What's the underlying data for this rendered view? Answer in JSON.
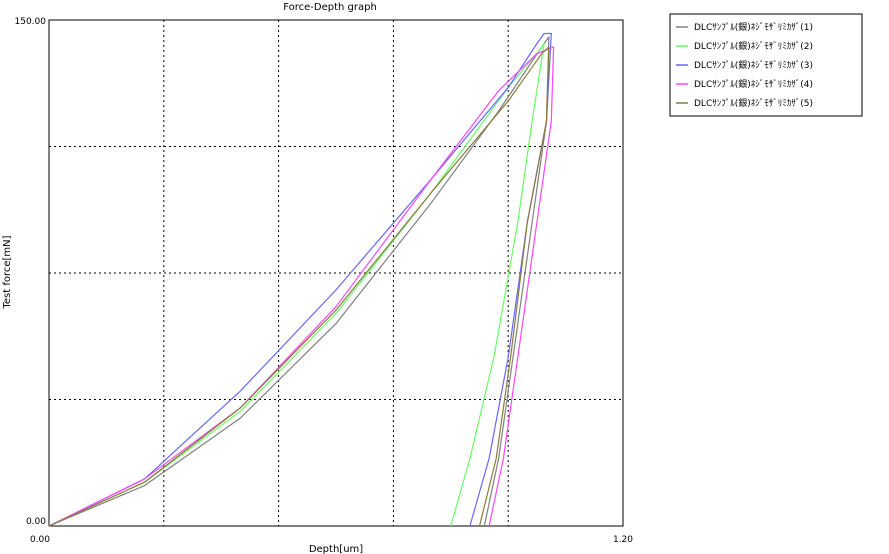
{
  "chart_data": {
    "type": "line",
    "title": "Force-Depth graph",
    "xlabel": "Depth[um]",
    "ylabel": "Test force[mN]",
    "xlim": [
      0.0,
      1.2
    ],
    "ylim": [
      0.0,
      150.0
    ],
    "x_tick_labels": [
      "0.00",
      "1.20"
    ],
    "y_tick_labels": [
      "0.00",
      "150.00"
    ],
    "grid": true,
    "grid_divisions": {
      "x": 5,
      "y": 4
    },
    "legend_position": "top-right, outside plot",
    "series": [
      {
        "name": "DLCｻﾝﾌﾟﾙ(銀)ﾈｼﾞﾓｻﾞﾘﾐｶｻﾞ(1)",
        "color": "#808080",
        "points": [
          [
            0,
            0
          ],
          [
            0.2,
            12.0
          ],
          [
            0.4,
            32.0
          ],
          [
            0.6,
            60.0
          ],
          [
            0.8,
            96.0
          ],
          [
            0.94,
            123.0
          ],
          [
            1.03,
            142.0
          ],
          [
            1.045,
            145.0
          ],
          [
            1.04,
            120.0
          ],
          [
            1.01,
            90.0
          ],
          [
            0.97,
            50.0
          ],
          [
            0.94,
            20.0
          ],
          [
            0.91,
            0
          ]
        ]
      },
      {
        "name": "DLCｻﾝﾌﾟﾙ(銀)ﾈｼﾞﾓｻﾞﾘﾐｶｻﾞ(2)",
        "color": "#66ff66",
        "points": [
          [
            0,
            0
          ],
          [
            0.2,
            13.0
          ],
          [
            0.4,
            34.0
          ],
          [
            0.6,
            63.0
          ],
          [
            0.8,
            99.0
          ],
          [
            0.96,
            130.0
          ],
          [
            1.025,
            141.0
          ],
          [
            1.035,
            143.0
          ],
          [
            1.01,
            120.0
          ],
          [
            0.98,
            90.0
          ],
          [
            0.93,
            50.0
          ],
          [
            0.88,
            20.0
          ],
          [
            0.84,
            0
          ]
        ]
      },
      {
        "name": "DLCｻﾝﾌﾟﾙ(銀)ﾈｼﾞﾓｻﾞﾘﾐｶｻﾞ(3)",
        "color": "#6666ff",
        "points": [
          [
            0,
            0
          ],
          [
            0.2,
            14.0
          ],
          [
            0.4,
            40.0
          ],
          [
            0.6,
            70.0
          ],
          [
            0.8,
            103.0
          ],
          [
            0.96,
            130.0
          ],
          [
            1.02,
            143.0
          ],
          [
            1.035,
            146.0
          ],
          [
            1.05,
            146.0
          ],
          [
            1.04,
            120.0
          ],
          [
            1.0,
            90.0
          ],
          [
            0.96,
            50.0
          ],
          [
            0.92,
            20.0
          ],
          [
            0.88,
            0
          ]
        ]
      },
      {
        "name": "DLCｻﾝﾌﾟﾙ(銀)ﾈｼﾞﾓｻﾞﾘﾐｶｻﾞ(4)",
        "color": "#ff44ff",
        "points": [
          [
            0,
            0
          ],
          [
            0.2,
            14.0
          ],
          [
            0.4,
            35.0
          ],
          [
            0.6,
            65.0
          ],
          [
            0.8,
            103.0
          ],
          [
            0.94,
            129.0
          ],
          [
            1.02,
            140.0
          ],
          [
            1.055,
            142.0
          ],
          [
            1.05,
            120.0
          ],
          [
            1.02,
            90.0
          ],
          [
            0.98,
            50.0
          ],
          [
            0.95,
            20.0
          ],
          [
            0.92,
            0
          ]
        ]
      },
      {
        "name": "DLCｻﾝﾌﾟﾙ(銀)ﾈｼﾞﾓｻﾞﾘﾐｶｻﾞ(5)",
        "color": "#8b7a3c",
        "points": [
          [
            0,
            0
          ],
          [
            0.2,
            13.0
          ],
          [
            0.4,
            35.0
          ],
          [
            0.6,
            64.0
          ],
          [
            0.8,
            99.0
          ],
          [
            0.96,
            126.0
          ],
          [
            1.03,
            140.0
          ],
          [
            1.045,
            142.0
          ],
          [
            1.04,
            120.0
          ],
          [
            1.0,
            90.0
          ],
          [
            0.965,
            50.0
          ],
          [
            0.935,
            20.0
          ],
          [
            0.9,
            0
          ]
        ]
      }
    ]
  }
}
